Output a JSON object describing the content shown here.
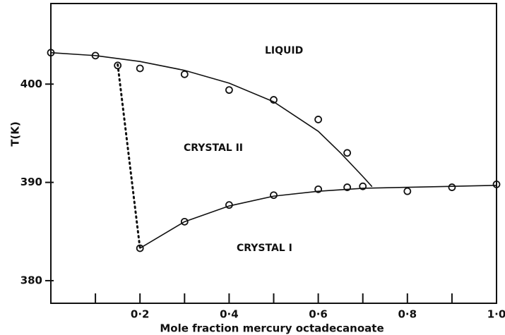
{
  "chart_data": {
    "type": "scatter",
    "xlabel": "Mole fraction mercury octadecanoate",
    "ylabel": "T(K)",
    "annotations": [
      "LIQUID",
      "CRYSTAL II",
      "CRYSTAL I"
    ],
    "xlim": [
      0,
      1.0
    ],
    "ylim": [
      377.7,
      408.2
    ],
    "xticks": [
      {
        "value": 0.1,
        "label": ""
      },
      {
        "value": 0.2,
        "label": "0·2"
      },
      {
        "value": 0.3,
        "label": ""
      },
      {
        "value": 0.4,
        "label": "0·4"
      },
      {
        "value": 0.5,
        "label": ""
      },
      {
        "value": 0.6,
        "label": "0·6"
      },
      {
        "value": 0.7,
        "label": ""
      },
      {
        "value": 0.8,
        "label": "0·8"
      },
      {
        "value": 0.9,
        "label": ""
      },
      {
        "value": 1.0,
        "label": "1·0"
      }
    ],
    "yticks": [
      380,
      390,
      400
    ],
    "color": "#111111",
    "series": [
      {
        "style": "marker",
        "x": [
          0,
          0.1,
          0.15,
          0.2,
          0.3,
          0.4,
          0.5,
          0.6,
          0.665,
          0.7
        ],
        "values": [
          403.2,
          402.9,
          401.9,
          401.6,
          401.0,
          399.4,
          398.4,
          396.4,
          393.0,
          389.6
        ]
      },
      {
        "style": "marker",
        "x": [
          0.2,
          0.3,
          0.4,
          0.5,
          0.6,
          0.665,
          0.8,
          0.9,
          1.0
        ],
        "values": [
          383.3,
          386.0,
          387.7,
          388.7,
          389.3,
          389.5,
          389.1,
          389.5,
          389.8
        ]
      },
      {
        "style": "line",
        "x": [
          0,
          0.1,
          0.2,
          0.3,
          0.4,
          0.5,
          0.6,
          0.65,
          0.7,
          0.72
        ],
        "values": [
          403.2,
          402.9,
          402.3,
          401.4,
          400.1,
          398.2,
          395.2,
          393.0,
          390.6,
          389.6
        ]
      },
      {
        "style": "line",
        "x": [
          0.2,
          0.3,
          0.4,
          0.5,
          0.6,
          0.7,
          0.8,
          0.9,
          1.0
        ],
        "values": [
          383.3,
          386.0,
          387.6,
          388.6,
          389.1,
          389.4,
          389.5,
          389.6,
          389.7
        ]
      },
      {
        "style": "dotted",
        "x": [
          0.15,
          0.2
        ],
        "values": [
          402.0,
          383.3
        ]
      }
    ]
  }
}
